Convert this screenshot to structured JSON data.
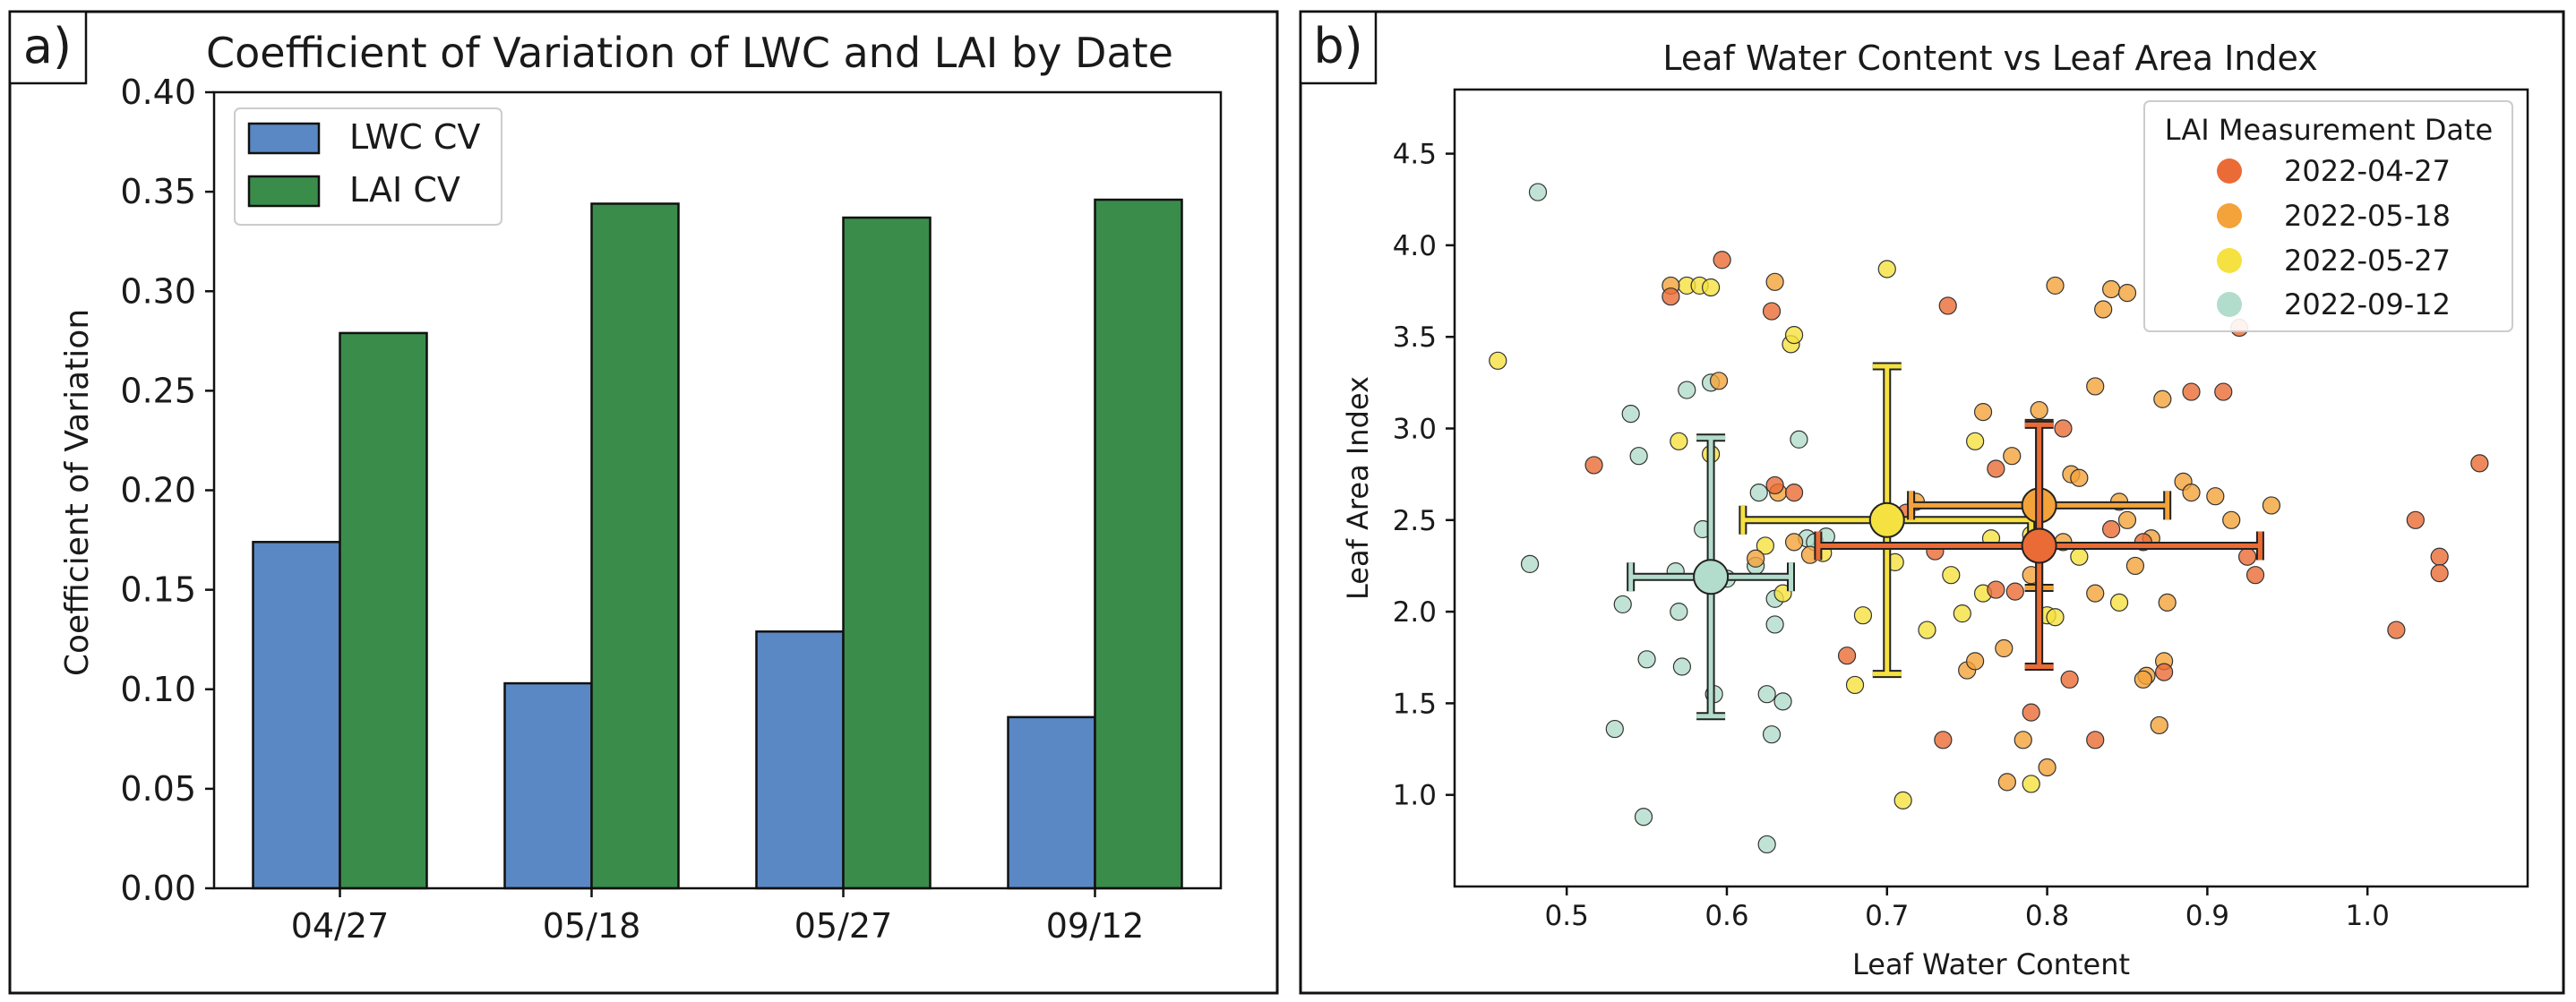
{
  "panel_a": {
    "tag": "a)",
    "legend": [
      "LWC CV",
      "LAI CV"
    ]
  },
  "panel_b": {
    "tag": "b)",
    "legend_title": "LAI Measurement Date",
    "legend": [
      "2022-04-27",
      "2022-05-18",
      "2022-05-27",
      "2022-09-12"
    ]
  },
  "colors": {
    "lwc_bar": "#5a88c4",
    "lai_bar": "#3a8c4b",
    "d0427": "#ea6b35",
    "d0518": "#f3a33a",
    "d0527": "#f5e13f",
    "d0912": "#b2dccb"
  },
  "chart_data": [
    {
      "type": "bar",
      "title": "Coefficient of Variation of LWC and LAI by Date",
      "xlabel": "",
      "ylabel": "Coefficient of Variation",
      "categories": [
        "04/27",
        "05/18",
        "05/27",
        "09/12"
      ],
      "series": [
        {
          "name": "LWC CV",
          "values": [
            0.174,
            0.103,
            0.129,
            0.086
          ]
        },
        {
          "name": "LAI CV",
          "values": [
            0.279,
            0.344,
            0.337,
            0.346
          ]
        }
      ],
      "ylim": [
        0,
        0.4
      ],
      "yticks": [
        "0.00",
        "0.05",
        "0.10",
        "0.15",
        "0.20",
        "0.25",
        "0.30",
        "0.35",
        "0.40"
      ],
      "legend_position": "top-left",
      "grid": false
    },
    {
      "type": "scatter",
      "title": "Leaf Water Content vs Leaf Area Index",
      "xlabel": "Leaf Water Content",
      "ylabel": "Leaf Area Index",
      "xlim": [
        0.43,
        1.1
      ],
      "ylim": [
        0.5,
        4.85
      ],
      "xticks": [
        "0.5",
        "0.6",
        "0.7",
        "0.8",
        "0.9",
        "1.0"
      ],
      "yticks": [
        "1.0",
        "1.5",
        "2.0",
        "2.5",
        "3.0",
        "3.5",
        "4.0",
        "4.5"
      ],
      "legend_position": "top-right",
      "grid": false,
      "series": [
        {
          "name": "2022-04-27",
          "color_key": "d0427",
          "mean": {
            "x": 0.795,
            "y": 2.36,
            "xerr": 0.138,
            "yerr": 0.66
          },
          "points": [
            [
              0.517,
              2.8
            ],
            [
              0.565,
              3.72
            ],
            [
              0.597,
              3.92
            ],
            [
              0.628,
              3.64
            ],
            [
              0.63,
              2.69
            ],
            [
              0.642,
              2.65
            ],
            [
              0.675,
              1.76
            ],
            [
              0.712,
              2.54
            ],
            [
              0.73,
              2.33
            ],
            [
              0.735,
              1.3
            ],
            [
              0.738,
              3.67
            ],
            [
              0.768,
              2.12
            ],
            [
              0.768,
              2.78
            ],
            [
              0.78,
              2.11
            ],
            [
              0.79,
              1.45
            ],
            [
              0.8,
              2.58
            ],
            [
              0.81,
              3.0
            ],
            [
              0.814,
              1.63
            ],
            [
              0.83,
              1.3
            ],
            [
              0.84,
              2.45
            ],
            [
              0.86,
              2.38
            ],
            [
              0.873,
              1.67
            ],
            [
              0.89,
              3.2
            ],
            [
              0.91,
              3.2
            ],
            [
              0.92,
              3.55
            ],
            [
              0.925,
              2.3
            ],
            [
              0.93,
              2.2
            ],
            [
              1.018,
              1.9
            ],
            [
              1.03,
              2.5
            ],
            [
              1.045,
              2.3
            ],
            [
              1.045,
              2.21
            ],
            [
              1.07,
              2.81
            ]
          ]
        },
        {
          "name": "2022-05-18",
          "color_key": "d0518",
          "mean": {
            "x": 0.795,
            "y": 2.58,
            "xerr": 0.08,
            "yerr": 0.45
          },
          "points": [
            [
              0.565,
              3.78
            ],
            [
              0.595,
              3.26
            ],
            [
              0.618,
              2.29
            ],
            [
              0.63,
              3.8
            ],
            [
              0.632,
              2.65
            ],
            [
              0.642,
              2.38
            ],
            [
              0.652,
              2.31
            ],
            [
              0.718,
              2.6
            ],
            [
              0.75,
              1.68
            ],
            [
              0.755,
              1.73
            ],
            [
              0.76,
              3.09
            ],
            [
              0.773,
              1.8
            ],
            [
              0.775,
              1.07
            ],
            [
              0.778,
              2.85
            ],
            [
              0.785,
              1.3
            ],
            [
              0.795,
              3.1
            ],
            [
              0.8,
              1.15
            ],
            [
              0.805,
              3.78
            ],
            [
              0.81,
              2.38
            ],
            [
              0.815,
              2.75
            ],
            [
              0.83,
              3.23
            ],
            [
              0.835,
              3.65
            ],
            [
              0.84,
              3.76
            ],
            [
              0.845,
              2.6
            ],
            [
              0.85,
              3.74
            ],
            [
              0.85,
              2.5
            ],
            [
              0.855,
              2.25
            ],
            [
              0.862,
              1.65
            ],
            [
              0.865,
              2.4
            ],
            [
              0.87,
              1.38
            ],
            [
              0.873,
              1.73
            ],
            [
              0.875,
              2.05
            ],
            [
              0.885,
              2.71
            ],
            [
              0.89,
              2.65
            ],
            [
              0.905,
              2.63
            ],
            [
              0.915,
              2.5
            ],
            [
              0.94,
              2.58
            ],
            [
              0.86,
              1.63
            ],
            [
              0.872,
              3.16
            ],
            [
              0.82,
              2.73
            ],
            [
              0.83,
              2.1
            ],
            [
              0.79,
              2.2
            ]
          ]
        },
        {
          "name": "2022-05-27",
          "color_key": "d0527",
          "mean": {
            "x": 0.7,
            "y": 2.5,
            "xerr": 0.09,
            "yerr": 0.84
          },
          "points": [
            [
              0.457,
              3.37
            ],
            [
              0.57,
              2.93
            ],
            [
              0.575,
              3.78
            ],
            [
              0.583,
              3.78
            ],
            [
              0.59,
              3.77
            ],
            [
              0.59,
              2.86
            ],
            [
              0.624,
              2.36
            ],
            [
              0.635,
              2.1
            ],
            [
              0.64,
              3.46
            ],
            [
              0.642,
              3.51
            ],
            [
              0.66,
              2.32
            ],
            [
              0.685,
              1.98
            ],
            [
              0.7,
              3.87
            ],
            [
              0.705,
              2.27
            ],
            [
              0.71,
              0.97
            ],
            [
              0.725,
              1.9
            ],
            [
              0.74,
              2.2
            ],
            [
              0.747,
              1.99
            ],
            [
              0.755,
              2.93
            ],
            [
              0.765,
              2.4
            ],
            [
              0.79,
              1.06
            ],
            [
              0.8,
              1.98
            ],
            [
              0.805,
              1.97
            ],
            [
              0.82,
              2.3
            ],
            [
              0.845,
              2.05
            ],
            [
              0.76,
              2.1
            ],
            [
              0.68,
              1.6
            ],
            [
              0.79,
              2.42
            ]
          ]
        },
        {
          "name": "2022-09-12",
          "color_key": "d0912",
          "mean": {
            "x": 0.59,
            "y": 2.19,
            "xerr": 0.05,
            "yerr": 0.76
          },
          "points": [
            [
              0.477,
              2.26
            ],
            [
              0.482,
              4.29
            ],
            [
              0.53,
              1.36
            ],
            [
              0.535,
              2.04
            ],
            [
              0.54,
              3.08
            ],
            [
              0.545,
              2.85
            ],
            [
              0.548,
              0.88
            ],
            [
              0.55,
              1.74
            ],
            [
              0.568,
              2.22
            ],
            [
              0.57,
              2.0
            ],
            [
              0.572,
              1.7
            ],
            [
              0.575,
              3.21
            ],
            [
              0.585,
              2.45
            ],
            [
              0.592,
              1.55
            ],
            [
              0.6,
              2.18
            ],
            [
              0.618,
              2.25
            ],
            [
              0.625,
              1.55
            ],
            [
              0.625,
              0.73
            ],
            [
              0.628,
              1.33
            ],
            [
              0.63,
              1.93
            ],
            [
              0.635,
              1.51
            ],
            [
              0.645,
              2.94
            ],
            [
              0.65,
              2.4
            ],
            [
              0.655,
              2.38
            ],
            [
              0.662,
              2.41
            ],
            [
              0.59,
              3.25
            ],
            [
              0.62,
              2.65
            ],
            [
              0.63,
              2.07
            ]
          ]
        }
      ]
    }
  ]
}
